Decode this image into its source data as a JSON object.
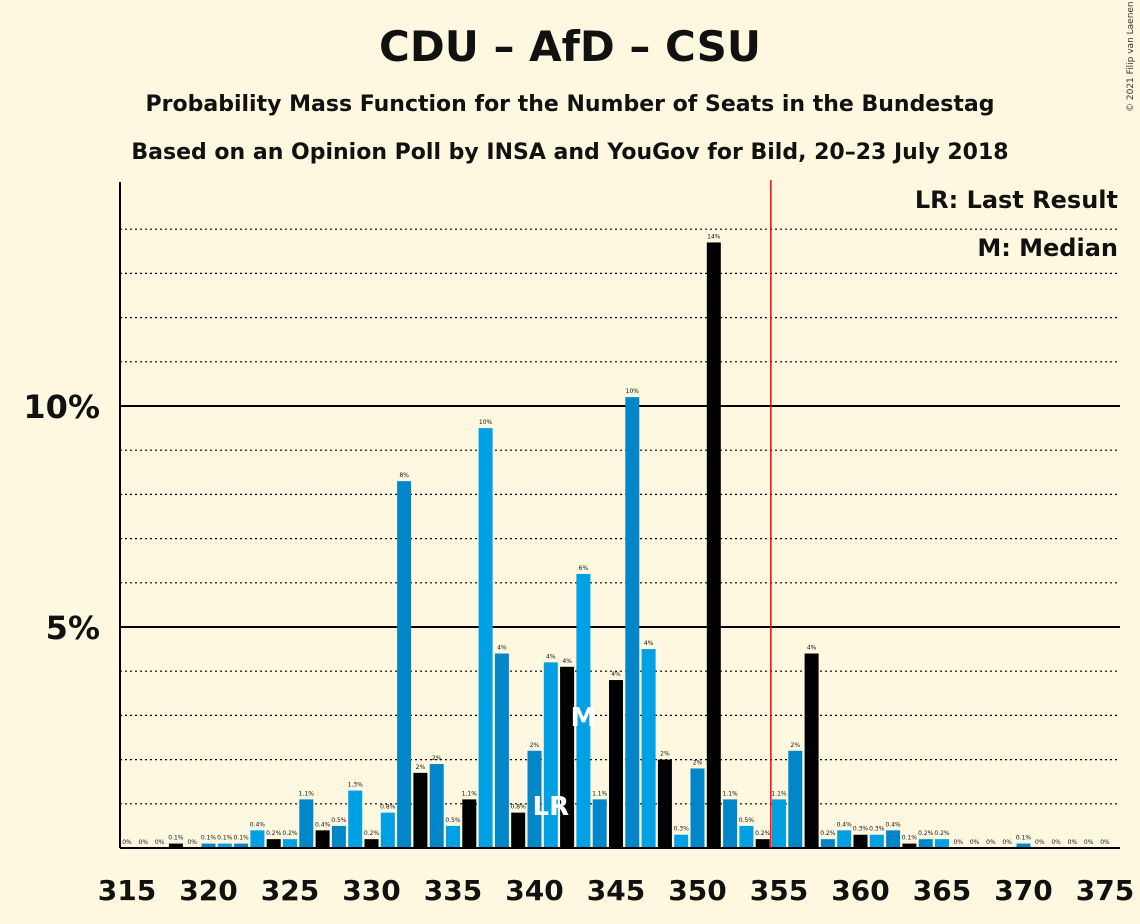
{
  "header": {
    "title": "CDU – AfD – CSU",
    "subtitle1": "Probability Mass Function for the Number of Seats in the Bundestag",
    "subtitle2": "Based on an Opinion Poll by INSA and YouGov for Bild, 20–23 July 2018",
    "copyright": "© 2021 Filip van Laenen"
  },
  "legend": {
    "last_result": "LR: Last Result",
    "median": "M: Median"
  },
  "chart_data": {
    "type": "bar",
    "x": [
      315,
      316,
      317,
      318,
      319,
      320,
      321,
      322,
      323,
      324,
      325,
      326,
      327,
      328,
      329,
      330,
      331,
      332,
      333,
      334,
      335,
      336,
      337,
      338,
      339,
      340,
      341,
      342,
      343,
      344,
      345,
      346,
      347,
      348,
      349,
      350,
      351,
      352,
      353,
      354,
      355,
      356,
      357,
      358,
      359,
      360,
      361,
      362,
      363,
      364,
      365,
      366,
      367,
      368,
      369,
      370,
      371,
      372,
      373,
      374,
      375
    ],
    "values": [
      0,
      0,
      0,
      0.1,
      0,
      0.1,
      0.1,
      0.1,
      0.4,
      0.2,
      0.2,
      1.1,
      0.4,
      0.5,
      1.3,
      0.2,
      0.8,
      8.3,
      1.7,
      1.9,
      0.5,
      1.1,
      9.5,
      4.4,
      0.8,
      2.2,
      4.2,
      4.1,
      6.2,
      1.1,
      3.8,
      10.2,
      4.5,
      2.0,
      0.3,
      1.8,
      13.7,
      1.1,
      0.5,
      0.2,
      1.1,
      2.2,
      4.4,
      0.2,
      0.4,
      0.3,
      0.3,
      0.4,
      0.1,
      0.2,
      0.2,
      0,
      0,
      0,
      0,
      0.1,
      0,
      0,
      0,
      0,
      0
    ],
    "data_labels": [
      "0%",
      "0%",
      "0%",
      "0.1%",
      "0%",
      "0.1%",
      "0.1%",
      "0.1%",
      "0.4%",
      "0.2%",
      "0.2%",
      "1.1%",
      "0.4%",
      "0.5%",
      "1.3%",
      "0.2%",
      "0.8%",
      "8%",
      "2%",
      "2%",
      "0.5%",
      "1.1%",
      "10%",
      "4%",
      "0.8%",
      "2%",
      "4%",
      "4%",
      "6%",
      "1.1%",
      "4%",
      "10%",
      "4%",
      "2%",
      "0.3%",
      "2%",
      "14%",
      "1.1%",
      "0.5%",
      "0.2%",
      "1.1%",
      "2%",
      "4%",
      "0.2%",
      "0.4%",
      "0.3%",
      "0.3%",
      "0.4%",
      "0.1%",
      "0.2%",
      "0.2%",
      "0%",
      "0%",
      "0%",
      "0%",
      "0.1%",
      "0%",
      "0%",
      "0%",
      "0%",
      "0%"
    ],
    "x_ticks": [
      315,
      320,
      325,
      330,
      335,
      340,
      345,
      350,
      355,
      360,
      365,
      370,
      375
    ],
    "x_tick_labels": [
      "315",
      "320",
      "325",
      "330",
      "335",
      "340",
      "345",
      "350",
      "355",
      "360",
      "365",
      "370",
      "375"
    ],
    "y_ticks": [
      5,
      10
    ],
    "y_tick_labels": [
      "5%",
      "10%"
    ],
    "ylim": [
      0,
      15
    ],
    "xlim": [
      314.5,
      375.5
    ],
    "majority_line": 354.5,
    "last_result_seat": 341,
    "median_seat": 343,
    "last_result_marker": "LR",
    "median_marker": "M",
    "grid": "dotted lines every 1%, solid at 5% and 10%",
    "legend_placement": "top-right",
    "colors": {
      "even_bar": "#0086c9",
      "odd_bar": "#00a0e4",
      "black_bar": "#000000",
      "majority_line": "#ff0000",
      "background": "#fff8e1"
    },
    "black_bars": [
      318,
      324,
      327,
      330,
      333,
      336,
      339,
      342,
      345,
      348,
      351,
      354,
      357,
      360,
      363
    ]
  }
}
